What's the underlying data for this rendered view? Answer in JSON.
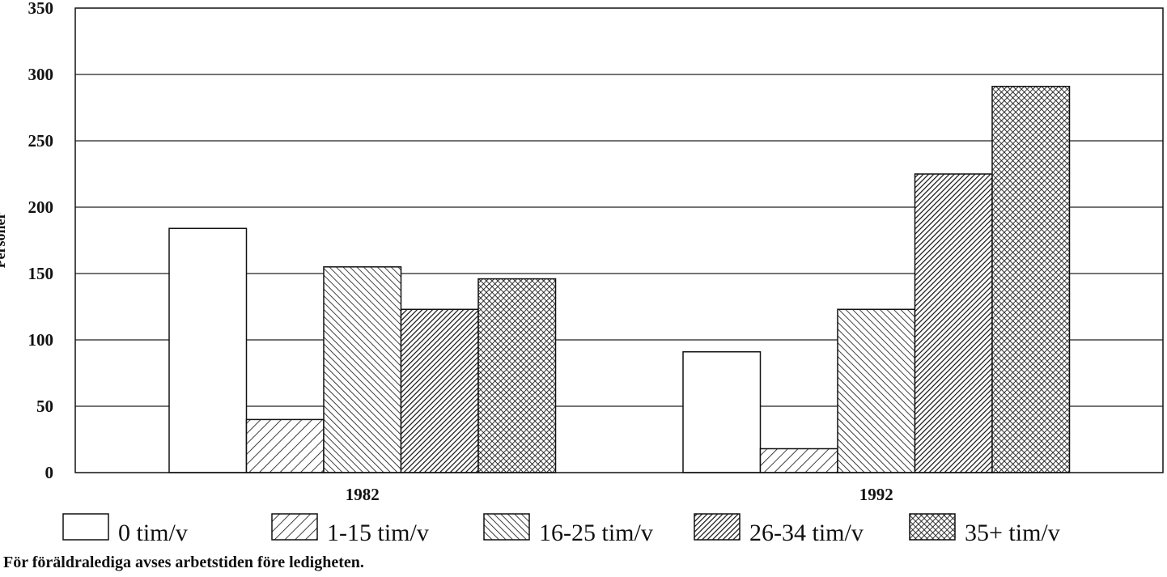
{
  "chart_data": {
    "type": "bar",
    "title": "",
    "xlabel": "",
    "ylabel": "Personer",
    "ylim": [
      0,
      350
    ],
    "yticks": [
      0,
      50,
      100,
      150,
      200,
      250,
      300,
      350
    ],
    "grid": true,
    "legend_position": "bottom",
    "categories": [
      "1982",
      "1992"
    ],
    "series": [
      {
        "name": "0 tim/v",
        "pattern": "empty",
        "values": [
          184,
          91
        ]
      },
      {
        "name": "1-15 tim/v",
        "pattern": "sparse-back",
        "values": [
          40,
          18
        ]
      },
      {
        "name": "16-25 tim/v",
        "pattern": "fwd-hatch",
        "values": [
          155,
          123
        ]
      },
      {
        "name": "26-34 tim/v",
        "pattern": "dense-back",
        "values": [
          123,
          225
        ]
      },
      {
        "name": "35+ tim/v",
        "pattern": "crosshatch",
        "values": [
          146,
          291
        ]
      }
    ]
  },
  "footnote": "För föräldralediga avses arbetstiden före ledigheten."
}
